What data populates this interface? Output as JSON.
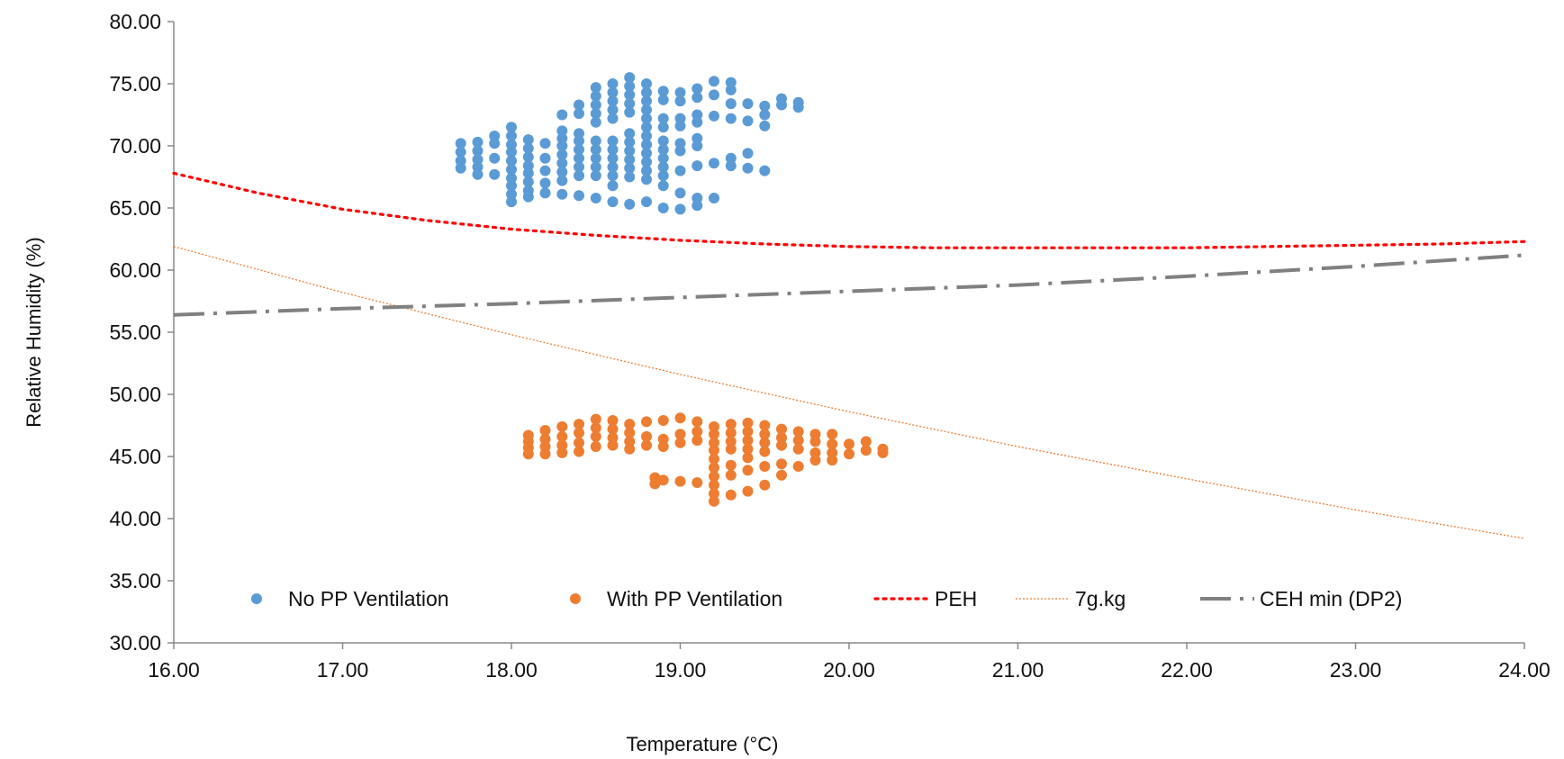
{
  "chart_data": {
    "type": "scatter",
    "xlabel": "Temperature (°C)",
    "ylabel": "Relative Humidity (%)",
    "xlim": [
      16,
      24
    ],
    "ylim": [
      30,
      80
    ],
    "xticks": [
      "16.00",
      "17.00",
      "18.00",
      "19.00",
      "20.00",
      "21.00",
      "22.00",
      "23.00",
      "24.00"
    ],
    "yticks": [
      "30.00",
      "35.00",
      "40.00",
      "45.00",
      "50.00",
      "55.00",
      "60.00",
      "65.00",
      "70.00",
      "75.00",
      "80.00"
    ],
    "legend_position": "bottom-inside",
    "grid": false,
    "series": [
      {
        "name": "No PP Ventilation",
        "kind": "scatter",
        "color": "#5B9BD5",
        "points": [
          [
            17.7,
            70.2
          ],
          [
            17.7,
            69.5
          ],
          [
            17.7,
            68.8
          ],
          [
            17.7,
            68.2
          ],
          [
            17.8,
            70.3
          ],
          [
            17.8,
            69.6
          ],
          [
            17.8,
            68.9
          ],
          [
            17.8,
            68.3
          ],
          [
            17.8,
            67.7
          ],
          [
            17.9,
            70.8
          ],
          [
            17.9,
            70.2
          ],
          [
            17.9,
            69.0
          ],
          [
            17.9,
            67.7
          ],
          [
            18.0,
            71.5
          ],
          [
            18.0,
            70.8
          ],
          [
            18.0,
            70.1
          ],
          [
            18.0,
            69.5
          ],
          [
            18.0,
            68.8
          ],
          [
            18.0,
            68.1
          ],
          [
            18.0,
            67.4
          ],
          [
            18.0,
            66.8
          ],
          [
            18.0,
            66.1
          ],
          [
            18.0,
            65.5
          ],
          [
            18.1,
            70.5
          ],
          [
            18.1,
            69.8
          ],
          [
            18.1,
            69.1
          ],
          [
            18.1,
            68.4
          ],
          [
            18.1,
            67.8
          ],
          [
            18.1,
            67.1
          ],
          [
            18.1,
            66.4
          ],
          [
            18.1,
            65.9
          ],
          [
            18.2,
            70.2
          ],
          [
            18.2,
            69.0
          ],
          [
            18.2,
            68.0
          ],
          [
            18.2,
            67.0
          ],
          [
            18.2,
            66.2
          ],
          [
            18.3,
            72.5
          ],
          [
            18.3,
            71.2
          ],
          [
            18.3,
            70.6
          ],
          [
            18.3,
            70.0
          ],
          [
            18.3,
            69.3
          ],
          [
            18.3,
            68.6
          ],
          [
            18.3,
            67.9
          ],
          [
            18.3,
            67.2
          ],
          [
            18.3,
            66.1
          ],
          [
            18.4,
            73.3
          ],
          [
            18.4,
            72.6
          ],
          [
            18.4,
            71.0
          ],
          [
            18.4,
            70.4
          ],
          [
            18.4,
            69.7
          ],
          [
            18.4,
            69.0
          ],
          [
            18.4,
            68.3
          ],
          [
            18.4,
            67.6
          ],
          [
            18.4,
            66.0
          ],
          [
            18.5,
            74.7
          ],
          [
            18.5,
            74.0
          ],
          [
            18.5,
            73.3
          ],
          [
            18.5,
            72.6
          ],
          [
            18.5,
            71.9
          ],
          [
            18.5,
            70.4
          ],
          [
            18.5,
            69.7
          ],
          [
            18.5,
            69.0
          ],
          [
            18.5,
            68.3
          ],
          [
            18.5,
            67.6
          ],
          [
            18.5,
            65.8
          ],
          [
            18.6,
            75.0
          ],
          [
            18.6,
            74.3
          ],
          [
            18.6,
            73.6
          ],
          [
            18.6,
            72.9
          ],
          [
            18.6,
            72.2
          ],
          [
            18.6,
            70.4
          ],
          [
            18.6,
            69.7
          ],
          [
            18.6,
            69.0
          ],
          [
            18.6,
            68.3
          ],
          [
            18.6,
            67.6
          ],
          [
            18.6,
            66.8
          ],
          [
            18.6,
            65.5
          ],
          [
            18.7,
            75.5
          ],
          [
            18.7,
            74.8
          ],
          [
            18.7,
            74.1
          ],
          [
            18.7,
            73.4
          ],
          [
            18.7,
            72.7
          ],
          [
            18.7,
            71.0
          ],
          [
            18.7,
            70.3
          ],
          [
            18.7,
            69.6
          ],
          [
            18.7,
            68.9
          ],
          [
            18.7,
            68.2
          ],
          [
            18.7,
            67.5
          ],
          [
            18.7,
            65.3
          ],
          [
            18.8,
            75.0
          ],
          [
            18.8,
            74.3
          ],
          [
            18.8,
            73.6
          ],
          [
            18.8,
            72.9
          ],
          [
            18.8,
            72.2
          ],
          [
            18.8,
            71.5
          ],
          [
            18.8,
            70.8
          ],
          [
            18.8,
            70.1
          ],
          [
            18.8,
            69.4
          ],
          [
            18.8,
            68.7
          ],
          [
            18.8,
            68.0
          ],
          [
            18.8,
            67.3
          ],
          [
            18.8,
            65.5
          ],
          [
            18.9,
            74.4
          ],
          [
            18.9,
            73.7
          ],
          [
            18.9,
            72.2
          ],
          [
            18.9,
            71.5
          ],
          [
            18.9,
            70.4
          ],
          [
            18.9,
            69.7
          ],
          [
            18.9,
            69.0
          ],
          [
            18.9,
            68.3
          ],
          [
            18.9,
            67.6
          ],
          [
            18.9,
            66.8
          ],
          [
            18.9,
            65.0
          ],
          [
            19.0,
            74.3
          ],
          [
            19.0,
            73.6
          ],
          [
            19.0,
            72.2
          ],
          [
            19.0,
            71.6
          ],
          [
            19.0,
            70.2
          ],
          [
            19.0,
            69.6
          ],
          [
            19.0,
            68.0
          ],
          [
            19.0,
            66.2
          ],
          [
            19.0,
            64.9
          ],
          [
            19.1,
            74.6
          ],
          [
            19.1,
            73.9
          ],
          [
            19.1,
            72.5
          ],
          [
            19.1,
            71.9
          ],
          [
            19.1,
            70.6
          ],
          [
            19.1,
            70.0
          ],
          [
            19.1,
            68.4
          ],
          [
            19.1,
            65.8
          ],
          [
            19.1,
            65.2
          ],
          [
            19.2,
            75.2
          ],
          [
            19.2,
            74.1
          ],
          [
            19.2,
            72.4
          ],
          [
            19.2,
            68.6
          ],
          [
            19.2,
            65.8
          ],
          [
            19.3,
            75.1
          ],
          [
            19.3,
            74.5
          ],
          [
            19.3,
            73.4
          ],
          [
            19.3,
            72.2
          ],
          [
            19.3,
            69.0
          ],
          [
            19.3,
            68.4
          ],
          [
            19.4,
            73.4
          ],
          [
            19.4,
            72.0
          ],
          [
            19.4,
            69.4
          ],
          [
            19.4,
            68.2
          ],
          [
            19.5,
            73.2
          ],
          [
            19.5,
            72.5
          ],
          [
            19.5,
            71.6
          ],
          [
            19.5,
            68.0
          ],
          [
            19.6,
            73.8
          ],
          [
            19.6,
            73.3
          ],
          [
            19.7,
            73.5
          ],
          [
            19.7,
            73.1
          ]
        ]
      },
      {
        "name": "With PP Ventilation",
        "kind": "scatter",
        "color": "#ED7D31",
        "points": [
          [
            18.1,
            46.7
          ],
          [
            18.1,
            46.2
          ],
          [
            18.1,
            45.7
          ],
          [
            18.1,
            45.2
          ],
          [
            18.2,
            47.1
          ],
          [
            18.2,
            46.4
          ],
          [
            18.2,
            45.8
          ],
          [
            18.2,
            45.2
          ],
          [
            18.3,
            47.4
          ],
          [
            18.3,
            46.6
          ],
          [
            18.3,
            45.9
          ],
          [
            18.3,
            45.3
          ],
          [
            18.4,
            47.6
          ],
          [
            18.4,
            46.9
          ],
          [
            18.4,
            46.1
          ],
          [
            18.4,
            45.4
          ],
          [
            18.5,
            48.0
          ],
          [
            18.5,
            47.3
          ],
          [
            18.5,
            46.6
          ],
          [
            18.5,
            45.8
          ],
          [
            18.6,
            47.9
          ],
          [
            18.6,
            47.2
          ],
          [
            18.6,
            46.5
          ],
          [
            18.6,
            45.9
          ],
          [
            18.7,
            47.6
          ],
          [
            18.7,
            46.9
          ],
          [
            18.7,
            46.2
          ],
          [
            18.7,
            45.6
          ],
          [
            18.8,
            47.8
          ],
          [
            18.8,
            46.6
          ],
          [
            18.8,
            45.9
          ],
          [
            18.85,
            43.3
          ],
          [
            18.85,
            42.8
          ],
          [
            18.9,
            47.9
          ],
          [
            18.9,
            46.4
          ],
          [
            18.9,
            45.8
          ],
          [
            18.9,
            43.1
          ],
          [
            19.0,
            48.1
          ],
          [
            19.0,
            46.8
          ],
          [
            19.0,
            46.1
          ],
          [
            19.0,
            43.0
          ],
          [
            19.1,
            47.8
          ],
          [
            19.1,
            47.0
          ],
          [
            19.1,
            46.3
          ],
          [
            19.1,
            42.9
          ],
          [
            19.2,
            47.4
          ],
          [
            19.2,
            46.8
          ],
          [
            19.2,
            46.1
          ],
          [
            19.2,
            45.5
          ],
          [
            19.2,
            44.8
          ],
          [
            19.2,
            44.1
          ],
          [
            19.2,
            43.4
          ],
          [
            19.2,
            42.7
          ],
          [
            19.2,
            42.0
          ],
          [
            19.2,
            41.4
          ],
          [
            19.3,
            47.6
          ],
          [
            19.3,
            46.9
          ],
          [
            19.3,
            46.2
          ],
          [
            19.3,
            45.6
          ],
          [
            19.3,
            44.3
          ],
          [
            19.3,
            43.5
          ],
          [
            19.3,
            41.9
          ],
          [
            19.4,
            47.7
          ],
          [
            19.4,
            47.0
          ],
          [
            19.4,
            46.3
          ],
          [
            19.4,
            45.6
          ],
          [
            19.4,
            44.9
          ],
          [
            19.4,
            43.9
          ],
          [
            19.4,
            42.2
          ],
          [
            19.5,
            47.5
          ],
          [
            19.5,
            46.8
          ],
          [
            19.5,
            46.1
          ],
          [
            19.5,
            45.4
          ],
          [
            19.5,
            44.2
          ],
          [
            19.5,
            42.7
          ],
          [
            19.6,
            47.2
          ],
          [
            19.6,
            46.5
          ],
          [
            19.6,
            45.9
          ],
          [
            19.6,
            44.4
          ],
          [
            19.6,
            43.5
          ],
          [
            19.7,
            47.0
          ],
          [
            19.7,
            46.3
          ],
          [
            19.7,
            45.6
          ],
          [
            19.7,
            44.2
          ],
          [
            19.8,
            46.8
          ],
          [
            19.8,
            46.2
          ],
          [
            19.8,
            45.3
          ],
          [
            19.8,
            44.7
          ],
          [
            19.9,
            46.8
          ],
          [
            19.9,
            46.0
          ],
          [
            19.9,
            45.3
          ],
          [
            19.9,
            44.7
          ],
          [
            20.0,
            46.0
          ],
          [
            20.0,
            45.2
          ],
          [
            20.1,
            46.2
          ],
          [
            20.1,
            45.5
          ],
          [
            20.2,
            45.6
          ],
          [
            20.2,
            45.3
          ]
        ]
      },
      {
        "name": "PEH",
        "kind": "line",
        "style": "dotted",
        "color": "#FF0000",
        "points": [
          [
            16,
            67.8
          ],
          [
            16.5,
            66.2
          ],
          [
            17,
            64.9
          ],
          [
            17.5,
            64.0
          ],
          [
            18,
            63.3
          ],
          [
            18.5,
            62.8
          ],
          [
            19,
            62.4
          ],
          [
            19.5,
            62.1
          ],
          [
            20,
            61.9
          ],
          [
            20.5,
            61.8
          ],
          [
            21,
            61.8
          ],
          [
            21.5,
            61.8
          ],
          [
            22,
            61.8
          ],
          [
            22.5,
            61.9
          ],
          [
            23,
            62.0
          ],
          [
            23.5,
            62.1
          ],
          [
            24,
            62.3
          ]
        ]
      },
      {
        "name": "7g.kg",
        "kind": "line",
        "style": "thin-dotted",
        "color": "#ED7D31",
        "points": [
          [
            16,
            61.9
          ],
          [
            17,
            58.2
          ],
          [
            18,
            54.8
          ],
          [
            19,
            51.6
          ],
          [
            20,
            48.6
          ],
          [
            21,
            45.8
          ],
          [
            22,
            43.2
          ],
          [
            23,
            40.7
          ],
          [
            24,
            38.4
          ]
        ]
      },
      {
        "name": "CEH min (DP2)",
        "kind": "line",
        "style": "dash-dot",
        "color": "#808080",
        "points": [
          [
            16,
            56.4
          ],
          [
            17,
            56.9
          ],
          [
            18,
            57.3
          ],
          [
            19,
            57.8
          ],
          [
            20,
            58.3
          ],
          [
            21,
            58.8
          ],
          [
            22,
            59.5
          ],
          [
            23,
            60.3
          ],
          [
            24,
            61.2
          ]
        ]
      }
    ]
  }
}
